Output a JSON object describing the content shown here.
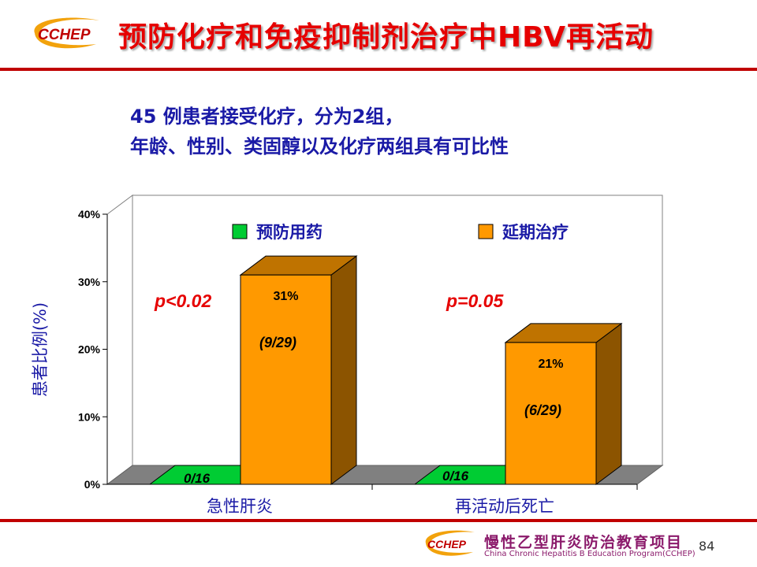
{
  "slide": {
    "title": "预防化疗和免疫抑制剂治疗中HBV再活动",
    "logo_text": "CCHEP",
    "subtitle_line1": "45 例患者接受化疗，分为2组，",
    "subtitle_line2": "年龄、性别、类固醇以及化疗两组具有可比性",
    "footer_cn": "慢性乙型肝炎防治教育项目",
    "footer_en": "China Chronic Hepatitis B Education Program(CCHEP)",
    "page_number": "84"
  },
  "colors": {
    "title": "#e60000",
    "rule": "#c00000",
    "subtitle": "#1a1aa6",
    "preventive": "#00cc33",
    "deferred": "#ff9900",
    "annotation": "#e60000"
  },
  "chart_data": {
    "type": "bar",
    "ylabel": "患者比例(%)",
    "xlabel": "",
    "ylim": [
      0,
      40
    ],
    "yticks": [
      "0%",
      "10%",
      "20%",
      "30%",
      "40%"
    ],
    "categories": [
      "急性肝炎",
      "再活动后死亡"
    ],
    "series": [
      {
        "name": "预防用药",
        "values": [
          0,
          0
        ],
        "labels": [
          "0/16",
          "0/16"
        ]
      },
      {
        "name": "延期治疗",
        "values": [
          31,
          21
        ],
        "labels": [
          "31%",
          "21%"
        ],
        "counts": [
          "(9/29)",
          "(6/29)"
        ]
      }
    ],
    "annotations": [
      "p<0.02",
      "p=0.05"
    ],
    "legend_position": "top",
    "grid": false
  }
}
